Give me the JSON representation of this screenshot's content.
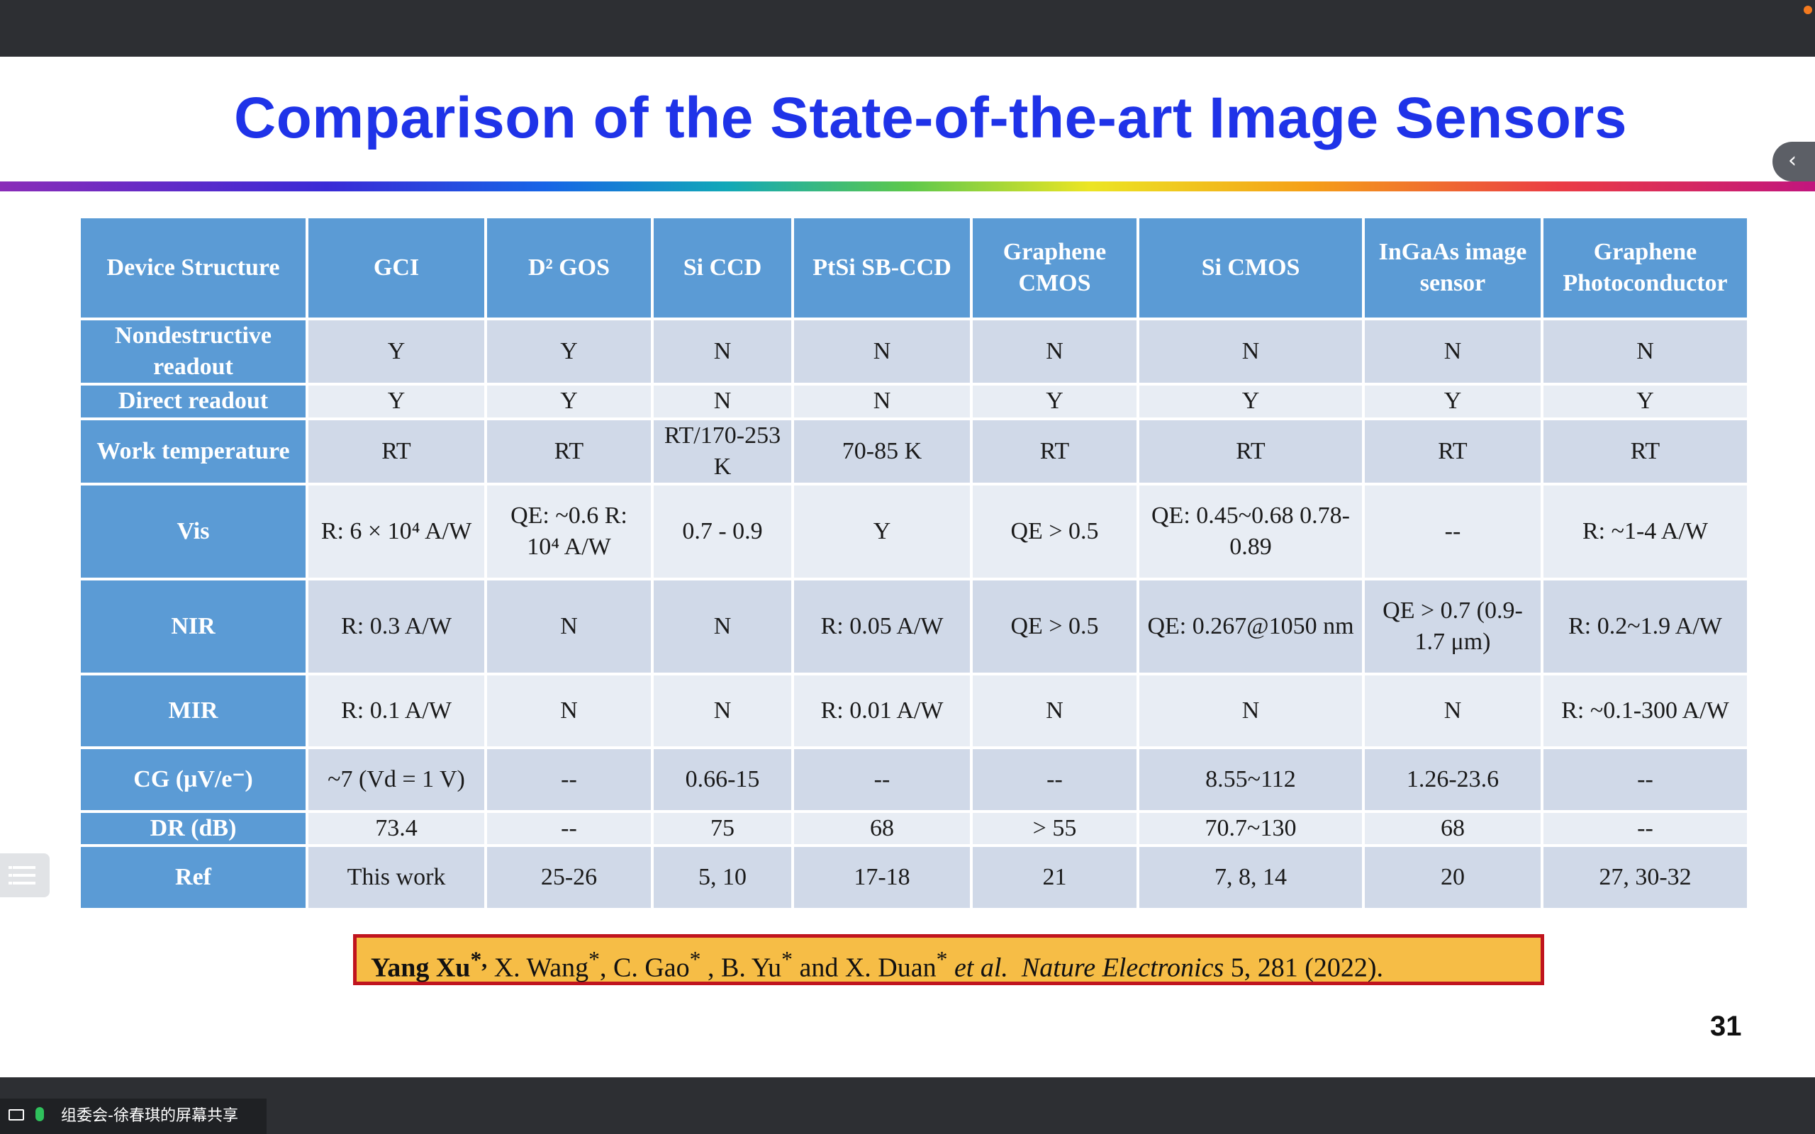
{
  "slide": {
    "title": "Comparison of the State-of-the-art Image Sensors",
    "page_number": "31"
  },
  "table": {
    "headers": [
      "Device Structure",
      "GCI",
      "D² GOS",
      "Si CCD",
      "PtSi SB-CCD",
      "Graphene CMOS",
      "Si CMOS",
      "InGaAs image sensor",
      "Graphene Photoconductor"
    ],
    "rows": [
      {
        "label": "Nondestructive readout",
        "cells": [
          "Y",
          "Y",
          "N",
          "N",
          "N",
          "N",
          "N",
          "N"
        ]
      },
      {
        "label": "Direct readout",
        "cells": [
          "Y",
          "Y",
          "N",
          "N",
          "Y",
          "Y",
          "Y",
          "Y"
        ]
      },
      {
        "label": "Work temperature",
        "cells": [
          "RT",
          "RT",
          "RT/170-253 K",
          "70-85 K",
          "RT",
          "RT",
          "RT",
          "RT"
        ]
      },
      {
        "label": "Vis",
        "cells": [
          "R: 6 × 10⁴ A/W",
          "QE: ~0.6 R: 10⁴ A/W",
          "0.7 - 0.9",
          "Y",
          "QE > 0.5",
          "QE: 0.45~0.68 0.78-0.89",
          "--",
          "R: ~1-4 A/W"
        ]
      },
      {
        "label": "NIR",
        "cells": [
          "R: 0.3 A/W",
          "N",
          "N",
          "R: 0.05 A/W",
          "QE > 0.5",
          "QE: 0.267@1050 nm",
          "QE > 0.7 (0.9-1.7 μm)",
          "R: 0.2~1.9 A/W"
        ]
      },
      {
        "label": "MIR",
        "cells": [
          "R: 0.1 A/W",
          "N",
          "N",
          "R: 0.01 A/W",
          "N",
          "N",
          "N",
          "R: ~0.1-300 A/W"
        ]
      },
      {
        "label": "CG (μV/e⁻)",
        "cells": [
          "~7 (Vd = 1 V)",
          "--",
          "0.66-15",
          "--",
          "--",
          "8.55~112",
          "1.26-23.6",
          "--"
        ]
      },
      {
        "label": "DR (dB)",
        "cells": [
          "73.4",
          "--",
          "75",
          "68",
          "> 55",
          "70.7~130",
          "68",
          "--"
        ]
      },
      {
        "label": "Ref",
        "cells": [
          "This work",
          "25-26",
          "5, 10",
          "17-18",
          "21",
          "7, 8, 14",
          "20",
          "27, 30-32"
        ]
      }
    ]
  },
  "citation": {
    "lead_author": "Yang Xu",
    "lead_mark": "*,",
    "authors_1": "X. Wang",
    "authors_2": "C. Gao",
    "authors_3": "B. Yu",
    "and_word": "and",
    "authors_4": "X. Duan",
    "star": "*",
    "etal": "et al.",
    "journal": "Nature  Electronics",
    "volume": "5, 281 (2022)."
  },
  "share_bar": {
    "label": "组委会-徐春琪的屏幕共享"
  },
  "colors": {
    "title": "#1f33e8",
    "header_bg": "#5b9bd5",
    "citation_bg": "#f6bd46",
    "citation_border": "#c0141e"
  }
}
